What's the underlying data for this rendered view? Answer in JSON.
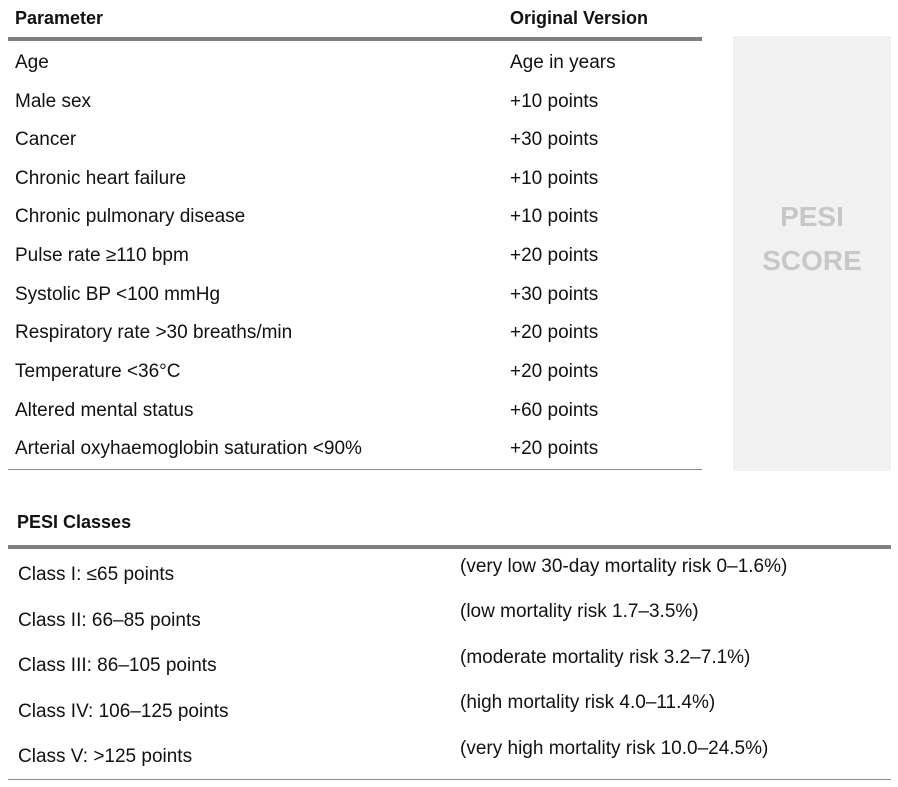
{
  "parameters_table": {
    "header": {
      "parameter": "Parameter",
      "version": "Original Version"
    },
    "rows": [
      {
        "parameter": "Age",
        "value": "Age in years"
      },
      {
        "parameter": "Male sex",
        "value": "+10 points"
      },
      {
        "parameter": "Cancer",
        "value": "+30 points"
      },
      {
        "parameter": "Chronic heart failure",
        "value": "+10 points"
      },
      {
        "parameter": "Chronic pulmonary disease",
        "value": "+10 points"
      },
      {
        "parameter": "Pulse rate ≥110 bpm",
        "value": "+20 points"
      },
      {
        "parameter": "Systolic BP <100 mmHg",
        "value": "+30 points"
      },
      {
        "parameter": "Respiratory rate >30 breaths/min",
        "value": "+20 points"
      },
      {
        "parameter": "Temperature <36°C",
        "value": "+20 points"
      },
      {
        "parameter": "Altered mental status",
        "value": "+60 points"
      },
      {
        "parameter": "Arterial oxyhaemoglobin saturation <90%",
        "value": "+20 points"
      }
    ]
  },
  "side_panel": {
    "line1": "PESI",
    "line2": "SCORE"
  },
  "classes_table": {
    "title": "PESI Classes",
    "rows": [
      {
        "class": "Class I: ≤65 points",
        "risk": "(very low 30-day mortality risk 0–1.6%)"
      },
      {
        "class": "Class II: 66–85 points",
        "risk": "(low mortality risk 1.7–3.5%)"
      },
      {
        "class": "Class III: 86–105 points",
        "risk": "(moderate mortality risk 3.2–7.1%)"
      },
      {
        "class": "Class IV: 106–125 points",
        "risk": "(high mortality risk 4.0–11.4%)"
      },
      {
        "class": "Class V: >125 points",
        "risk": "(very high mortality risk 10.0–24.5%)"
      }
    ]
  }
}
